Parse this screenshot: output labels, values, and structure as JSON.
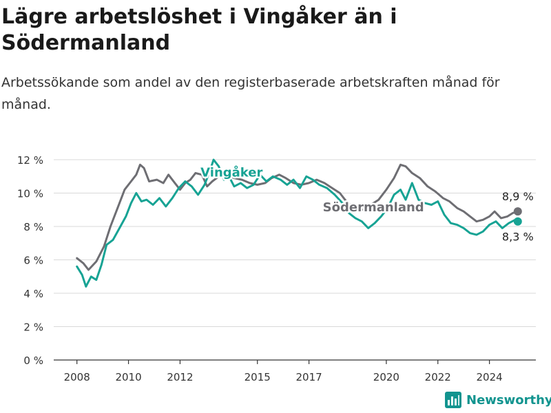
{
  "title": "Lägre arbetslöshet i Vingåker än i Södermanland",
  "subtitle": "Arbetssökande som andel av den registerbaserade arbetskraften månad för månad.",
  "brand": {
    "name": "Newsworthy",
    "logo_icon": "bar-chart-icon"
  },
  "colors": {
    "vingaker": "#17a394",
    "sodermanland": "#6e6e73",
    "grid": "#d9d9d9",
    "axis": "#333333"
  },
  "chart_data": {
    "type": "line",
    "title": "Lägre arbetslöshet i Vingåker än i Södermanland",
    "subtitle": "Arbetssökande som andel av den registerbaserade arbetskraften månad för månad.",
    "xlabel": "",
    "ylabel": "",
    "x_unit": "year",
    "xlim": [
      2007.1,
      2025.8
    ],
    "ylim": [
      0,
      12
    ],
    "y_ticks": [
      0,
      2,
      4,
      6,
      8,
      10,
      12
    ],
    "y_tick_labels": [
      "0 %",
      "2 %",
      "4 %",
      "6 %",
      "8 %",
      "10 %",
      "12 %"
    ],
    "x_ticks": [
      2008,
      2010,
      2012,
      2015,
      2017,
      2020,
      2022,
      2024
    ],
    "x_tick_labels": [
      "2008",
      "2010",
      "2012",
      "2015",
      "2017",
      "2020",
      "2022",
      "2024"
    ],
    "grid": "horizontal",
    "legend": "inline labels",
    "series": [
      {
        "name": "Södermanland",
        "color": "#6e6e73",
        "end_label": "8,9 %",
        "points": [
          [
            2008.0,
            6.1
          ],
          [
            2008.25,
            5.8
          ],
          [
            2008.45,
            5.4
          ],
          [
            2008.75,
            5.9
          ],
          [
            2009.05,
            6.8
          ],
          [
            2009.3,
            8.0
          ],
          [
            2009.6,
            9.2
          ],
          [
            2009.85,
            10.2
          ],
          [
            2010.1,
            10.7
          ],
          [
            2010.3,
            11.1
          ],
          [
            2010.45,
            11.7
          ],
          [
            2010.6,
            11.5
          ],
          [
            2010.8,
            10.7
          ],
          [
            2011.1,
            10.8
          ],
          [
            2011.35,
            10.6
          ],
          [
            2011.55,
            11.1
          ],
          [
            2011.8,
            10.6
          ],
          [
            2012.0,
            10.2
          ],
          [
            2012.2,
            10.6
          ],
          [
            2012.4,
            10.8
          ],
          [
            2012.6,
            11.2
          ],
          [
            2012.85,
            11.1
          ],
          [
            2013.05,
            10.4
          ],
          [
            2013.25,
            10.7
          ],
          [
            2013.5,
            11.0
          ],
          [
            2013.8,
            11.1
          ],
          [
            2014.1,
            10.9
          ],
          [
            2014.4,
            10.8
          ],
          [
            2014.7,
            10.6
          ],
          [
            2015.0,
            10.5
          ],
          [
            2015.3,
            10.6
          ],
          [
            2015.55,
            10.9
          ],
          [
            2015.85,
            11.1
          ],
          [
            2016.1,
            10.9
          ],
          [
            2016.4,
            10.6
          ],
          [
            2016.7,
            10.5
          ],
          [
            2017.0,
            10.6
          ],
          [
            2017.3,
            10.8
          ],
          [
            2017.6,
            10.6
          ],
          [
            2017.9,
            10.3
          ],
          [
            2018.2,
            10.0
          ],
          [
            2018.5,
            9.4
          ],
          [
            2018.8,
            9.1
          ],
          [
            2019.1,
            9.0
          ],
          [
            2019.4,
            9.3
          ],
          [
            2019.7,
            9.6
          ],
          [
            2020.0,
            10.2
          ],
          [
            2020.3,
            10.9
          ],
          [
            2020.55,
            11.7
          ],
          [
            2020.75,
            11.6
          ],
          [
            2021.0,
            11.2
          ],
          [
            2021.3,
            10.9
          ],
          [
            2021.6,
            10.4
          ],
          [
            2021.9,
            10.1
          ],
          [
            2022.2,
            9.7
          ],
          [
            2022.45,
            9.5
          ],
          [
            2022.75,
            9.1
          ],
          [
            2023.0,
            8.9
          ],
          [
            2023.25,
            8.6
          ],
          [
            2023.5,
            8.3
          ],
          [
            2023.75,
            8.4
          ],
          [
            2024.0,
            8.6
          ],
          [
            2024.2,
            8.9
          ],
          [
            2024.45,
            8.5
          ],
          [
            2024.7,
            8.6
          ],
          [
            2024.9,
            8.8
          ],
          [
            2025.1,
            8.9
          ]
        ]
      },
      {
        "name": "Vingåker",
        "color": "#17a394",
        "end_label": "8,3 %",
        "points": [
          [
            2008.0,
            5.6
          ],
          [
            2008.2,
            5.1
          ],
          [
            2008.35,
            4.4
          ],
          [
            2008.55,
            5.0
          ],
          [
            2008.75,
            4.8
          ],
          [
            2008.95,
            5.7
          ],
          [
            2009.15,
            6.9
          ],
          [
            2009.4,
            7.2
          ],
          [
            2009.65,
            7.9
          ],
          [
            2009.9,
            8.6
          ],
          [
            2010.1,
            9.4
          ],
          [
            2010.3,
            10.0
          ],
          [
            2010.5,
            9.5
          ],
          [
            2010.7,
            9.6
          ],
          [
            2010.95,
            9.3
          ],
          [
            2011.2,
            9.7
          ],
          [
            2011.45,
            9.2
          ],
          [
            2011.7,
            9.7
          ],
          [
            2011.95,
            10.3
          ],
          [
            2012.2,
            10.7
          ],
          [
            2012.45,
            10.4
          ],
          [
            2012.7,
            9.9
          ],
          [
            2012.95,
            10.5
          ],
          [
            2013.15,
            11.3
          ],
          [
            2013.3,
            12.0
          ],
          [
            2013.5,
            11.6
          ],
          [
            2013.7,
            10.8
          ],
          [
            2013.9,
            11.0
          ],
          [
            2014.1,
            10.4
          ],
          [
            2014.35,
            10.6
          ],
          [
            2014.6,
            10.3
          ],
          [
            2014.85,
            10.5
          ],
          [
            2015.1,
            11.1
          ],
          [
            2015.35,
            10.7
          ],
          [
            2015.6,
            11.0
          ],
          [
            2015.9,
            10.8
          ],
          [
            2016.15,
            10.5
          ],
          [
            2016.4,
            10.8
          ],
          [
            2016.65,
            10.3
          ],
          [
            2016.9,
            11.0
          ],
          [
            2017.15,
            10.8
          ],
          [
            2017.4,
            10.5
          ],
          [
            2017.7,
            10.3
          ],
          [
            2018.0,
            9.9
          ],
          [
            2018.3,
            9.4
          ],
          [
            2018.55,
            8.8
          ],
          [
            2018.8,
            8.5
          ],
          [
            2019.05,
            8.3
          ],
          [
            2019.3,
            7.9
          ],
          [
            2019.55,
            8.2
          ],
          [
            2019.8,
            8.6
          ],
          [
            2020.05,
            9.1
          ],
          [
            2020.3,
            9.9
          ],
          [
            2020.55,
            10.2
          ],
          [
            2020.75,
            9.6
          ],
          [
            2021.0,
            10.6
          ],
          [
            2021.25,
            9.6
          ],
          [
            2021.5,
            9.4
          ],
          [
            2021.75,
            9.3
          ],
          [
            2022.0,
            9.5
          ],
          [
            2022.25,
            8.7
          ],
          [
            2022.5,
            8.2
          ],
          [
            2022.75,
            8.1
          ],
          [
            2023.0,
            7.9
          ],
          [
            2023.25,
            7.6
          ],
          [
            2023.5,
            7.5
          ],
          [
            2023.75,
            7.7
          ],
          [
            2024.0,
            8.1
          ],
          [
            2024.25,
            8.3
          ],
          [
            2024.5,
            7.9
          ],
          [
            2024.75,
            8.2
          ],
          [
            2025.0,
            8.4
          ],
          [
            2025.1,
            8.3
          ]
        ]
      }
    ]
  }
}
